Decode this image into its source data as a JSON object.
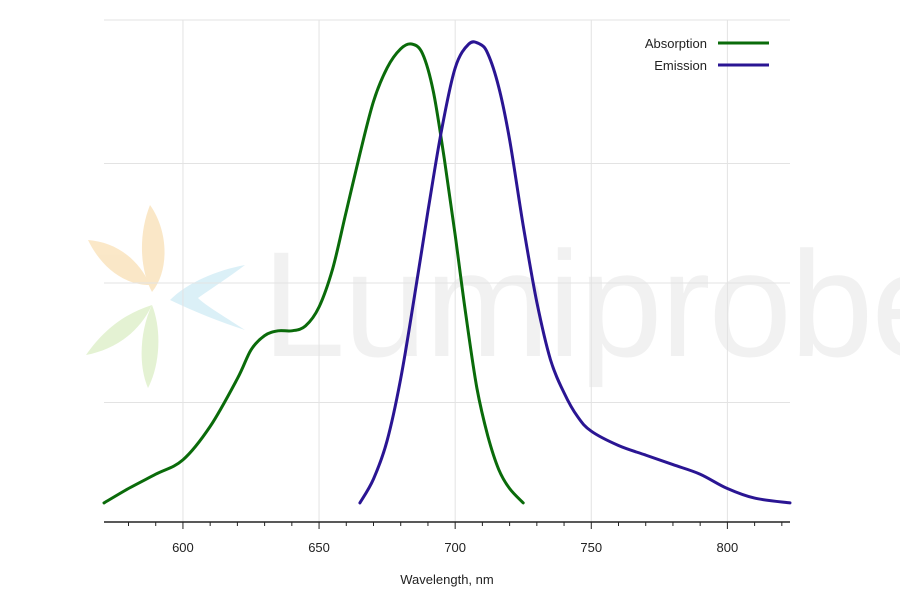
{
  "watermark": {
    "text": "Lumiprobe"
  },
  "chart_data": {
    "type": "line",
    "title": "",
    "xlabel": "Wavelength, nm",
    "ylabel": "",
    "xlim": [
      571,
      823
    ],
    "ylim": [
      0,
      1.0
    ],
    "x_ticks": [
      600,
      650,
      700,
      750,
      800
    ],
    "x_minor_step": 10,
    "y_gridlines": [
      0.25,
      0.5,
      0.75,
      1.0
    ],
    "grid": true,
    "legend": "top-right",
    "series": [
      {
        "name": "Absorption",
        "color": "#0a6b0a",
        "x": [
          571,
          580,
          590,
          600,
          610,
          620,
          625,
          630,
          635,
          640,
          645,
          650,
          655,
          660,
          665,
          670,
          675,
          680,
          684,
          688,
          692,
          696,
          700,
          704,
          708,
          712,
          716,
          720,
          725
        ],
        "y": [
          0.04,
          0.07,
          0.1,
          0.13,
          0.2,
          0.3,
          0.36,
          0.39,
          0.4,
          0.4,
          0.41,
          0.45,
          0.53,
          0.65,
          0.77,
          0.88,
          0.95,
          0.99,
          1.0,
          0.98,
          0.9,
          0.76,
          0.6,
          0.43,
          0.28,
          0.18,
          0.11,
          0.07,
          0.04
        ]
      },
      {
        "name": "Emission",
        "color": "#2a1593",
        "x": [
          665,
          670,
          675,
          680,
          685,
          690,
          695,
          700,
          705,
          709,
          712,
          716,
          720,
          725,
          730,
          735,
          740,
          745,
          750,
          760,
          770,
          780,
          790,
          800,
          810,
          823
        ],
        "y": [
          0.04,
          0.09,
          0.17,
          0.3,
          0.47,
          0.65,
          0.82,
          0.95,
          1.0,
          1.0,
          0.98,
          0.91,
          0.8,
          0.62,
          0.46,
          0.34,
          0.27,
          0.22,
          0.19,
          0.16,
          0.14,
          0.12,
          0.1,
          0.07,
          0.05,
          0.04
        ]
      }
    ]
  }
}
